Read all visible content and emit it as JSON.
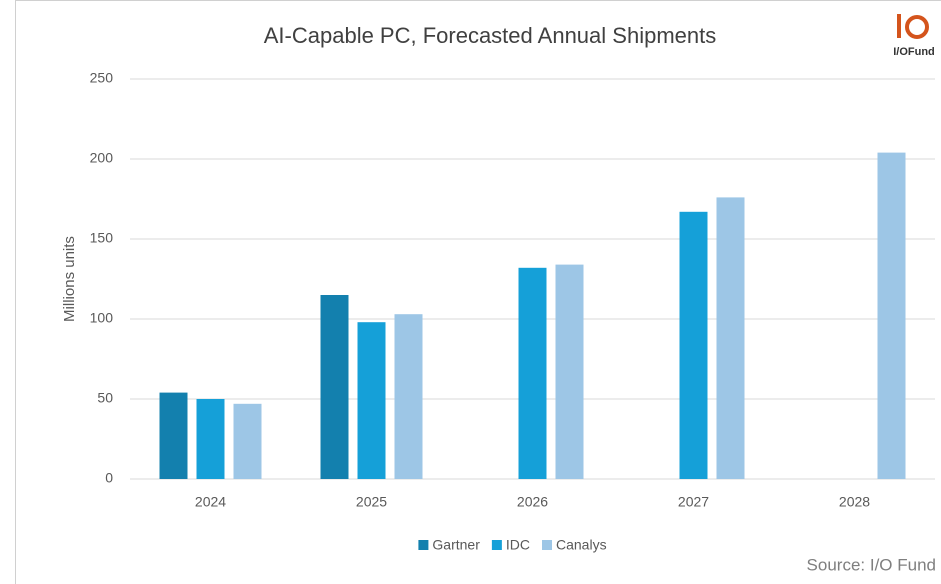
{
  "chart_data": {
    "type": "bar",
    "title": "AI-Capable PC, Forecasted Annual Shipments",
    "y_label": "Millions units",
    "categories": [
      "2024",
      "2025",
      "2026",
      "2027",
      "2028"
    ],
    "series": [
      {
        "name": "Gartner",
        "color": "#1380ae",
        "values": [
          54,
          115,
          null,
          null,
          null
        ]
      },
      {
        "name": "IDC",
        "color": "#15a0d8",
        "values": [
          50,
          98,
          132,
          167,
          null
        ]
      },
      {
        "name": "Canalys",
        "color": "#9dc6e6",
        "values": [
          47,
          103,
          134,
          176,
          204
        ]
      }
    ],
    "ylim": [
      0,
      250
    ],
    "yticks": [
      0,
      50,
      100,
      150,
      200,
      250
    ],
    "grid": true,
    "legend": "bottom",
    "source": "Source: I/O Fund",
    "logo_text": "I/OFund"
  }
}
